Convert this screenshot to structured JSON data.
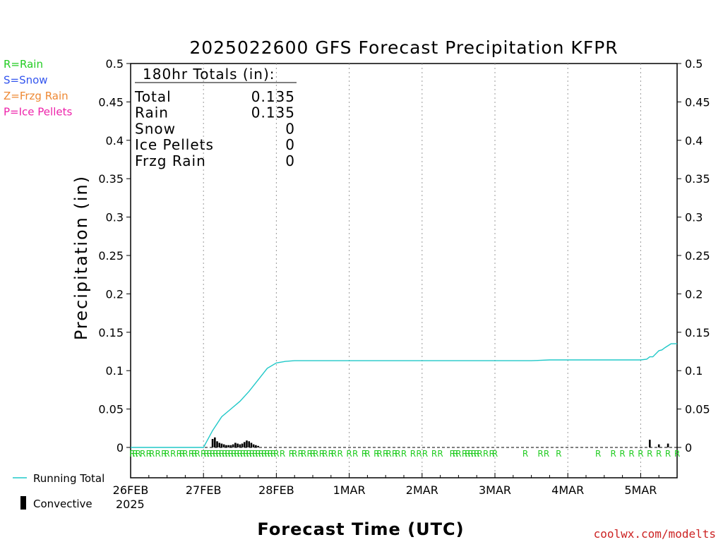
{
  "chart_data": {
    "type": "line",
    "title": "2025022600 GFS Forecast Precipitation KFPR",
    "ylabel": "Precipitation (in)",
    "xlabel": "Forecast Time (UTC)",
    "ylim": [
      0,
      0.5
    ],
    "y_ticks": [
      "0",
      "0.05",
      "0.1",
      "0.15",
      "0.2",
      "0.25",
      "0.3",
      "0.35",
      "0.4",
      "0.45",
      "0.5"
    ],
    "x_range_hours": [
      0,
      180
    ],
    "x_ticks": [
      "26FEB",
      "27FEB",
      "28FEB",
      "1MAR",
      "2MAR",
      "3MAR",
      "4MAR",
      "5MAR"
    ],
    "x_year_label": "2025",
    "grid": "vertical dotted at day boundaries",
    "series": [
      {
        "name": "Running Total",
        "color": "#20c8c8",
        "x_hours": [
          0,
          24,
          27,
          30,
          33,
          36,
          39,
          42,
          45,
          48,
          51,
          54,
          60,
          72,
          96,
          120,
          132,
          138,
          144,
          156,
          168,
          170,
          171,
          172,
          174,
          175,
          176,
          178,
          180
        ],
        "values": [
          0,
          0,
          0.022,
          0.04,
          0.05,
          0.06,
          0.073,
          0.088,
          0.103,
          0.11,
          0.112,
          0.113,
          0.113,
          0.113,
          0.113,
          0.113,
          0.113,
          0.114,
          0.114,
          0.114,
          0.114,
          0.115,
          0.118,
          0.118,
          0.126,
          0.127,
          0.13,
          0.135,
          0.135
        ]
      },
      {
        "name": "Convective",
        "color": "#000000",
        "x_hours": [
          27,
          27.75,
          28.5,
          29.25,
          30,
          30.75,
          31.5,
          32.25,
          33,
          33.75,
          34.5,
          35.25,
          36,
          36.75,
          37.5,
          38.25,
          39,
          39.75,
          40.5,
          41.25,
          42,
          171,
          174,
          177
        ],
        "values": [
          0.011,
          0.013,
          0.008,
          0.006,
          0.005,
          0.004,
          0.003,
          0.003,
          0.003,
          0.004,
          0.006,
          0.005,
          0.004,
          0.005,
          0.007,
          0.009,
          0.008,
          0.006,
          0.004,
          0.003,
          0.002,
          0.01,
          0.004,
          0.005
        ]
      }
    ],
    "ptype_hours": [
      0.5,
      1.5,
      2.5,
      4,
      6,
      7,
      9,
      11,
      12,
      14,
      16,
      17,
      18,
      20,
      21,
      22,
      24,
      25,
      26,
      27,
      28,
      29,
      30,
      31,
      32,
      33,
      34,
      35,
      36,
      37,
      38,
      39,
      40,
      41,
      42,
      43,
      44,
      45,
      46,
      47,
      48,
      50,
      53,
      54,
      56,
      57,
      59,
      60,
      61,
      63,
      64,
      66,
      67,
      69,
      72,
      74,
      77,
      78,
      81,
      82,
      84,
      85,
      87,
      88,
      90,
      93,
      95,
      97,
      100,
      102,
      106,
      107,
      108,
      110,
      111,
      112,
      113,
      114,
      115,
      117,
      119,
      120,
      130,
      135,
      137,
      141,
      154,
      159,
      162,
      165,
      168,
      171,
      174,
      177,
      180
    ],
    "ptype_symbol": "R",
    "ptype_color": "#22cc22"
  },
  "totals_box": {
    "header": "180hr Totals (in):",
    "rows": [
      {
        "label": "Total",
        "value": "0.135"
      },
      {
        "label": "Rain",
        "value": "0.135"
      },
      {
        "label": "Snow",
        "value": "0"
      },
      {
        "label": "Ice Pellets",
        "value": "0"
      },
      {
        "label": "Frzg Rain",
        "value": "0"
      }
    ]
  },
  "ptype_legend": [
    {
      "text": "R=Rain",
      "color": "#22cc22"
    },
    {
      "text": "S=Snow",
      "color": "#3355ee"
    },
    {
      "text": "Z=Frzg Rain",
      "color": "#ee8833"
    },
    {
      "text": "P=Ice Pellets",
      "color": "#ee22aa"
    }
  ],
  "series_legend": {
    "running_total": "Running Total",
    "convective": "Convective"
  },
  "credit": "coolwx.com/modelts"
}
